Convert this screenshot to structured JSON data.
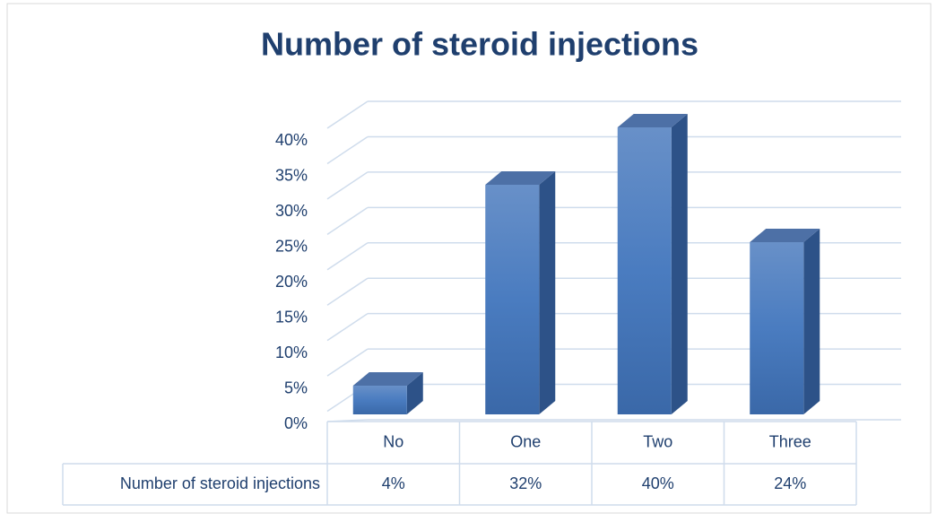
{
  "chart_data": {
    "type": "bar3d",
    "title": "Number of steroid injections",
    "categories": [
      "No",
      "One",
      "Two",
      "Three"
    ],
    "series": [
      {
        "name": "Number of steroid injections",
        "color": "#4a7cc0",
        "values": [
          4,
          32,
          40,
          24
        ],
        "value_labels": [
          "4%",
          "32%",
          "40%",
          "24%"
        ]
      }
    ],
    "ylim": [
      0,
      45
    ],
    "yticks": [
      {
        "value": 0,
        "label": "0%"
      },
      {
        "value": 5,
        "label": "5%"
      },
      {
        "value": 10,
        "label": "10%"
      },
      {
        "value": 15,
        "label": "15%"
      },
      {
        "value": 20,
        "label": "20%"
      },
      {
        "value": 25,
        "label": "25%"
      },
      {
        "value": 30,
        "label": "30%"
      },
      {
        "value": 35,
        "label": "35%"
      },
      {
        "value": 40,
        "label": "40%"
      }
    ],
    "grid": true
  }
}
